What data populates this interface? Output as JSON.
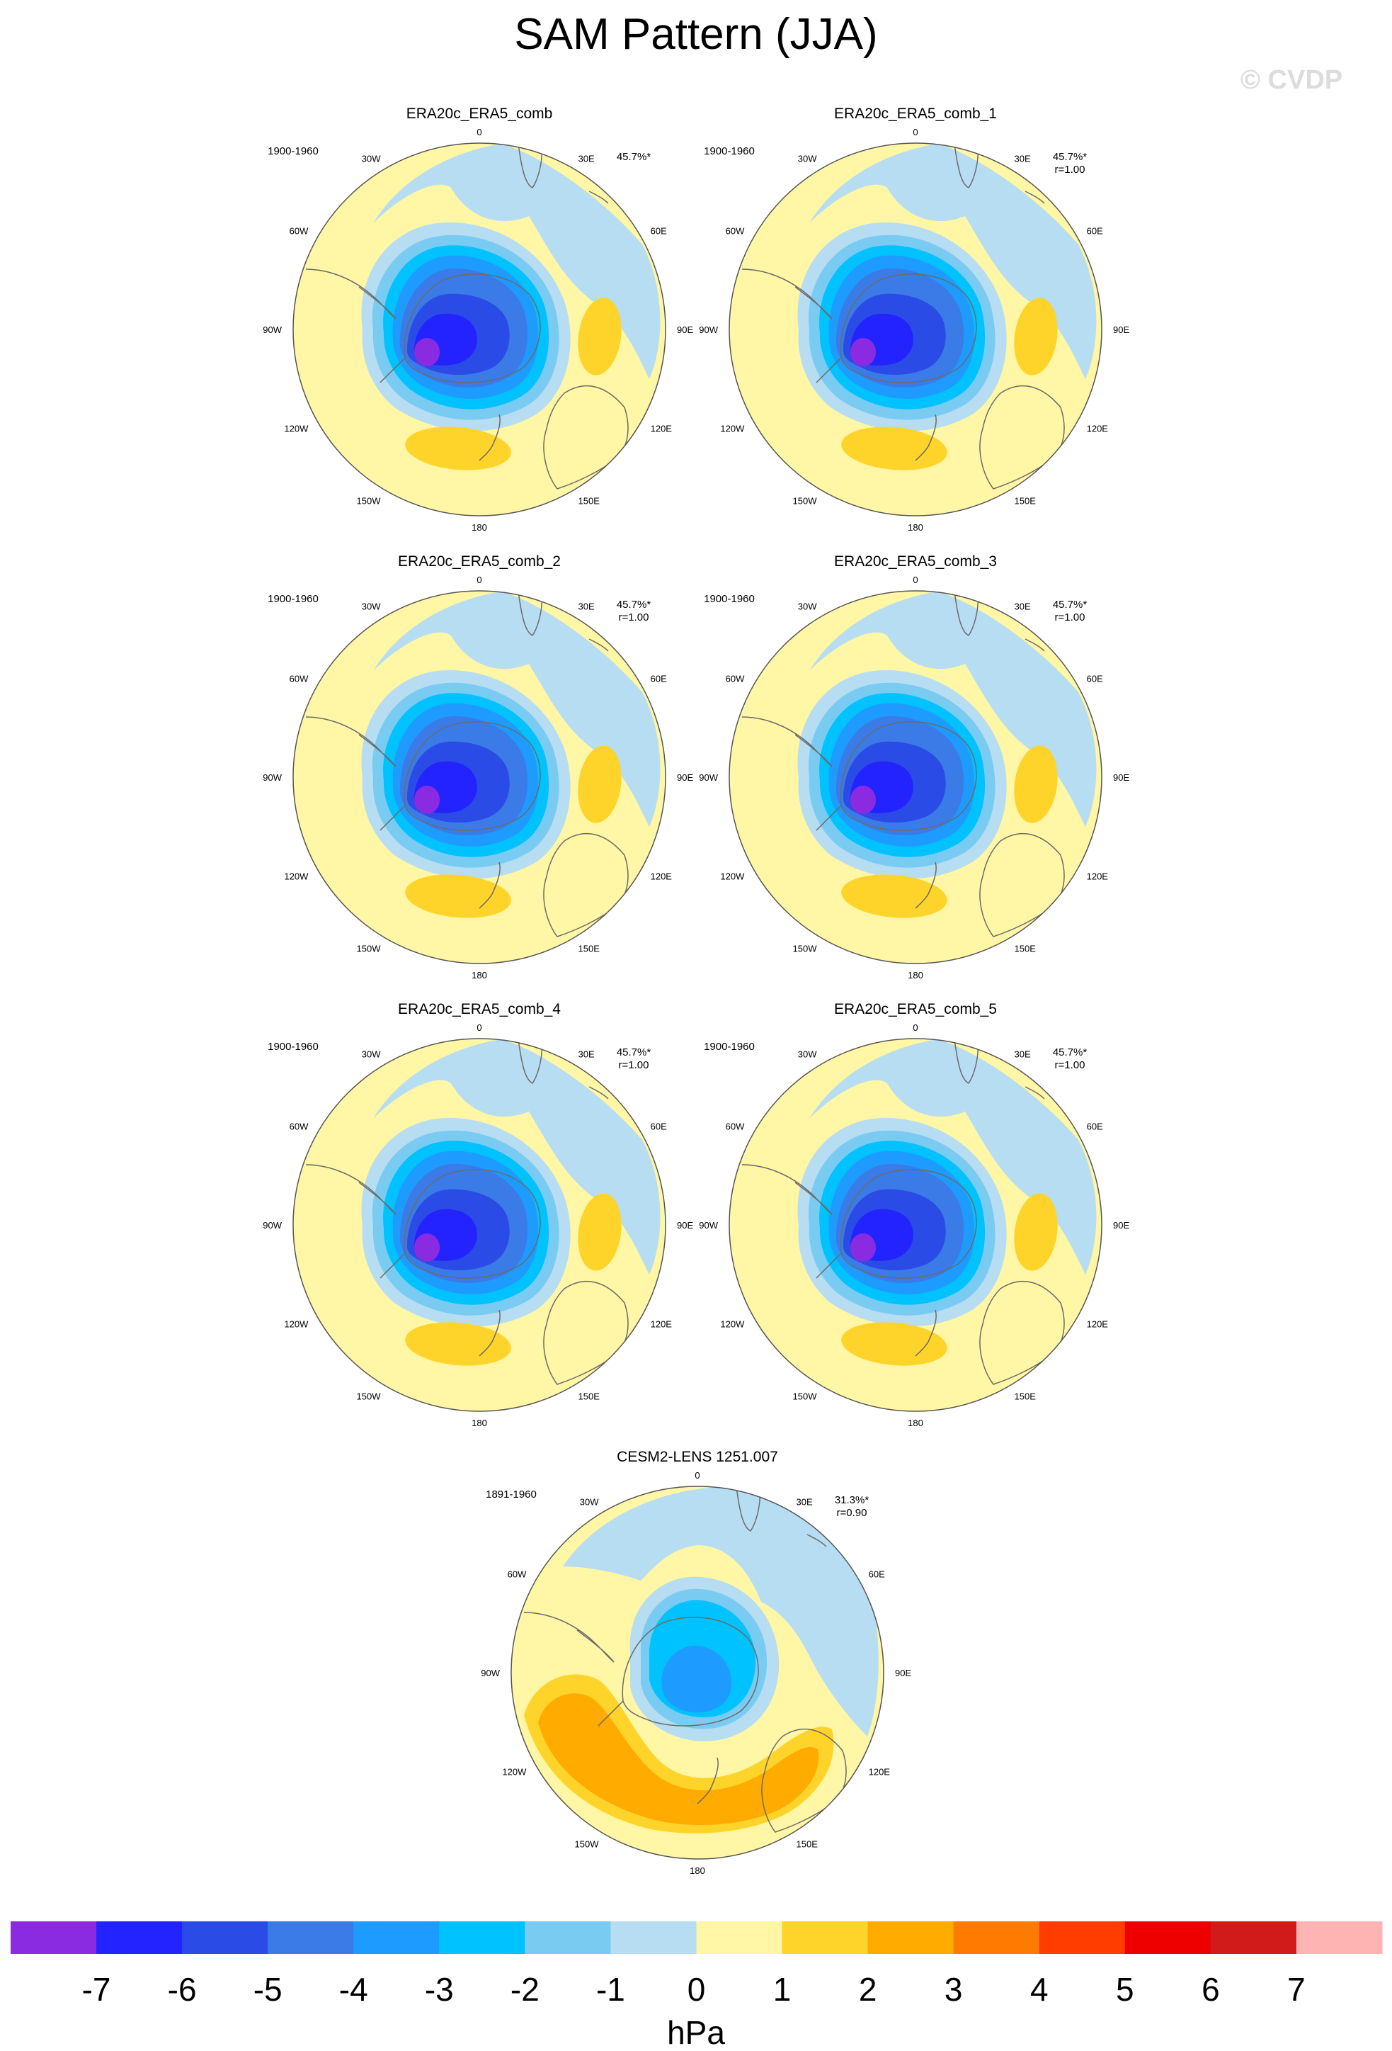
{
  "figure": {
    "title": "SAM Pattern (JJA)",
    "credit": "© CVDP",
    "units": "hPa"
  },
  "colors": {
    "land_outline": "#6b6b6b",
    "circle_outline": "#555555",
    "levels": [
      "#8a2be2",
      "#2323ff",
      "#2a4be6",
      "#3a7be8",
      "#1e9bff",
      "#00c2ff",
      "#7acbf2",
      "#b6ddf2",
      "#fff6a6",
      "#ffd42a",
      "#ffab00",
      "#ff7a00",
      "#ff3d00",
      "#ee0000",
      "#d11a1a",
      "#ffb4b4"
    ]
  },
  "colorbar": {
    "ticks": [
      "-7",
      "-6",
      "-5",
      "-4",
      "-3",
      "-2",
      "-1",
      "0",
      "1",
      "2",
      "3",
      "4",
      "5",
      "6",
      "7"
    ]
  },
  "longitude_labels": [
    "0",
    "30E",
    "60E",
    "90E",
    "120E",
    "150E",
    "180",
    "150W",
    "120W",
    "90W",
    "60W",
    "30W"
  ],
  "panels": [
    {
      "name": "ERA20c_ERA5_comb",
      "period": "1900-1960",
      "pct": "45.7%*",
      "r": "",
      "pattern": "obs"
    },
    {
      "name": "ERA20c_ERA5_comb_1",
      "period": "1900-1960",
      "pct": "45.7%*",
      "r": "r=1.00",
      "pattern": "obs"
    },
    {
      "name": "ERA20c_ERA5_comb_2",
      "period": "1900-1960",
      "pct": "45.7%*",
      "r": "r=1.00",
      "pattern": "obs"
    },
    {
      "name": "ERA20c_ERA5_comb_3",
      "period": "1900-1960",
      "pct": "45.7%*",
      "r": "r=1.00",
      "pattern": "obs"
    },
    {
      "name": "ERA20c_ERA5_comb_4",
      "period": "1900-1960",
      "pct": "45.7%*",
      "r": "r=1.00",
      "pattern": "obs"
    },
    {
      "name": "ERA20c_ERA5_comb_5",
      "period": "1900-1960",
      "pct": "45.7%*",
      "r": "r=1.00",
      "pattern": "obs"
    },
    {
      "name": "CESM2-LENS 1251.007",
      "period": "1891-1960",
      "pct": "31.3%*",
      "r": "r=0.90",
      "pattern": "model"
    }
  ]
}
